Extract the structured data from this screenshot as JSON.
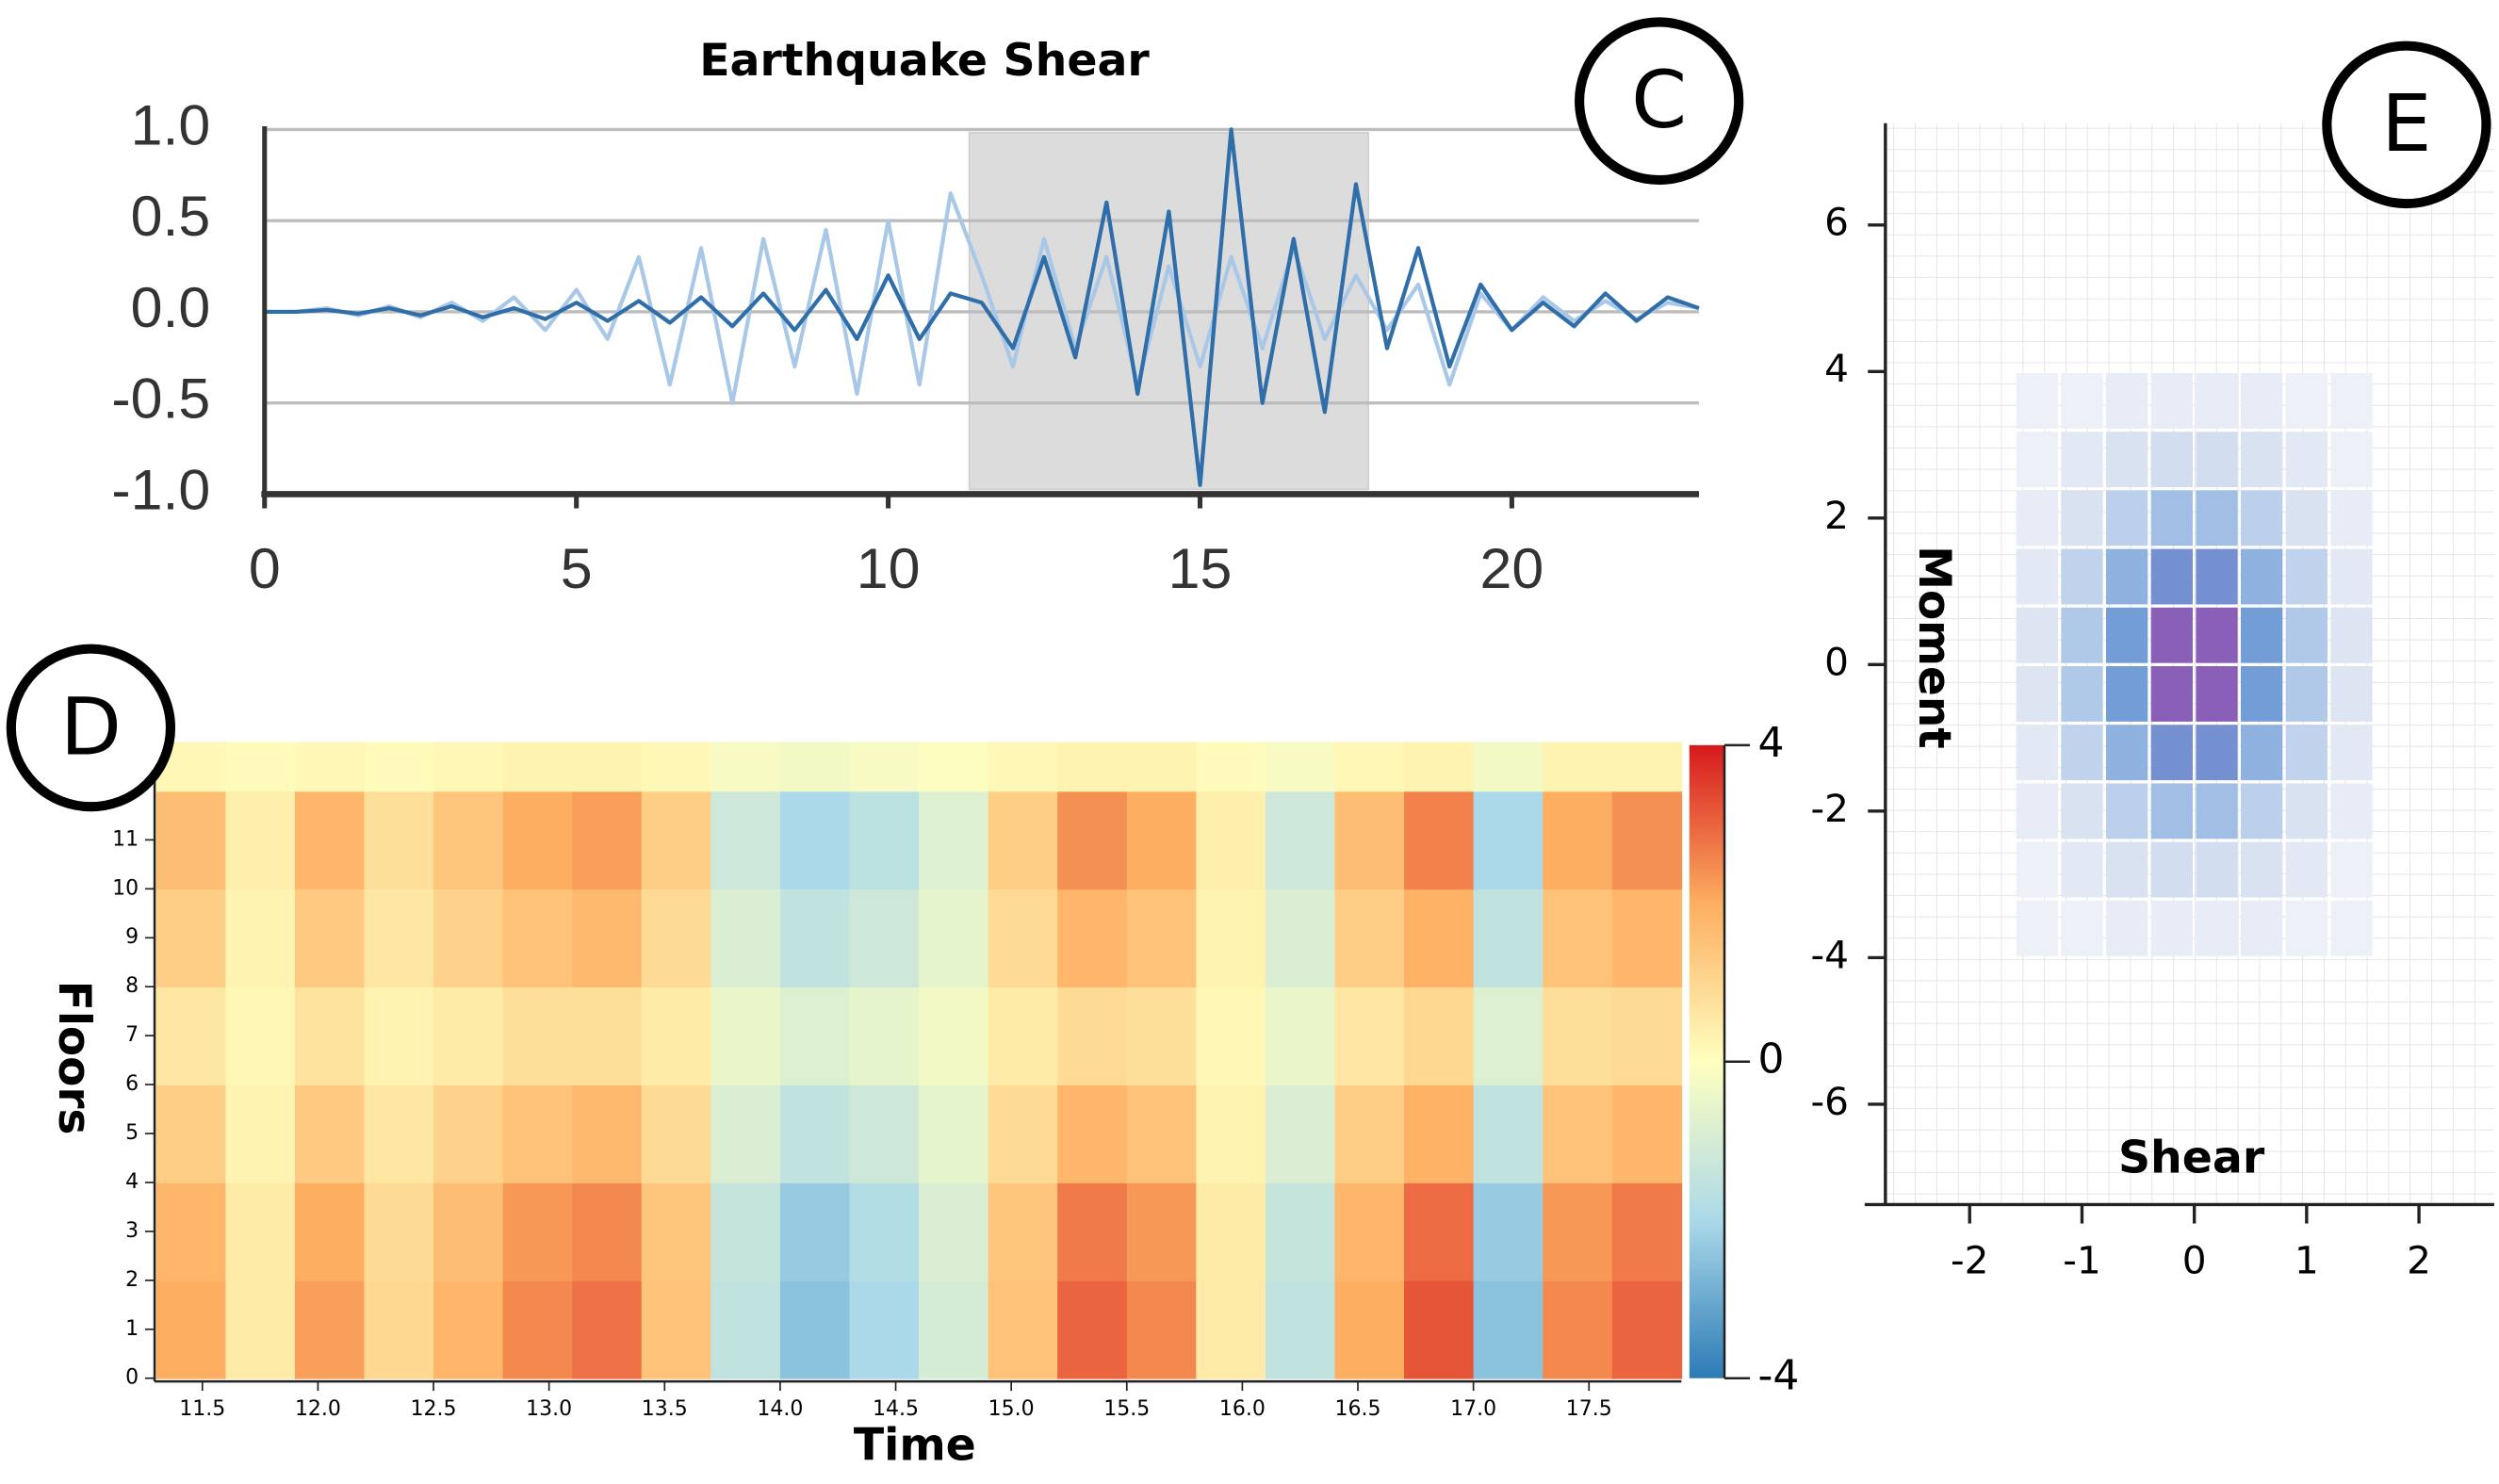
{
  "chart_data": [
    {
      "type": "line",
      "title": "Earthquake Shear",
      "panel_label": "C",
      "x": [
        0,
        0.5,
        1,
        1.5,
        2,
        2.5,
        3,
        3.5,
        4,
        4.5,
        5,
        5.5,
        6,
        6.5,
        7,
        7.5,
        8,
        8.5,
        9,
        9.5,
        10,
        10.5,
        11,
        11.5,
        12,
        12.5,
        13,
        13.5,
        14,
        14.5,
        15,
        15.5,
        16,
        16.5,
        17,
        17.5,
        18,
        18.5,
        19,
        19.5,
        20,
        20.5,
        21,
        21.5,
        22,
        22.5,
        23
      ],
      "series": [
        {
          "color": "#a9c8e8",
          "values": [
            0,
            0,
            0.02,
            -0.02,
            0.03,
            -0.03,
            0.05,
            -0.05,
            0.08,
            -0.1,
            0.12,
            -0.15,
            0.3,
            -0.4,
            0.35,
            -0.5,
            0.4,
            -0.3,
            0.45,
            -0.45,
            0.5,
            -0.4,
            0.65,
            0.2,
            -0.3,
            0.4,
            -0.2,
            0.3,
            -0.4,
            0.25,
            -0.3,
            0.3,
            -0.2,
            0.35,
            -0.15,
            0.2,
            -0.1,
            0.15,
            -0.4,
            0.1,
            -0.1,
            0.08,
            -0.05,
            0.06,
            -0.04,
            0.05,
            0.02
          ]
        },
        {
          "color": "#2f6ea8",
          "values": [
            0,
            0,
            0.01,
            -0.01,
            0.02,
            -0.02,
            0.03,
            -0.03,
            0.02,
            -0.04,
            0.05,
            -0.05,
            0.06,
            -0.06,
            0.08,
            -0.08,
            0.1,
            -0.1,
            0.12,
            -0.15,
            0.2,
            -0.15,
            0.1,
            0.05,
            -0.2,
            0.3,
            -0.25,
            0.6,
            -0.45,
            0.55,
            -0.95,
            1.0,
            -0.5,
            0.4,
            -0.55,
            0.7,
            -0.2,
            0.35,
            -0.3,
            0.15,
            -0.1,
            0.05,
            -0.08,
            0.1,
            -0.05,
            0.08,
            0.02
          ]
        }
      ],
      "xlim": [
        0,
        23
      ],
      "xticks": [
        0,
        5,
        10,
        15,
        20
      ],
      "ylim": [
        -1,
        1
      ],
      "yticks": [
        {
          "value": 1,
          "label": "1.0"
        },
        {
          "value": 0.5,
          "label": "0.5"
        },
        {
          "value": 0,
          "label": "0.0"
        },
        {
          "value": -0.5,
          "label": "-0.5"
        },
        {
          "value": -1,
          "label": "-1.0"
        }
      ],
      "grid": true,
      "selection": [
        11.3,
        17.7
      ]
    },
    {
      "type": "heatmap",
      "panel_label": "D",
      "x_label": "Time",
      "y_label": "Floors",
      "x_edges": [
        11.3,
        11.6,
        11.9,
        12.2,
        12.5,
        12.8,
        13.1,
        13.4,
        13.7,
        14.0,
        14.3,
        14.6,
        14.9,
        15.2,
        15.5,
        15.8,
        16.1,
        16.4,
        16.7,
        17.0,
        17.3,
        17.6,
        17.9
      ],
      "y_edges": [
        0,
        2,
        4,
        6,
        8,
        10,
        12,
        13
      ],
      "values": [
        [
          2.0,
          0.5,
          2.2,
          1.0,
          1.8,
          2.5,
          2.8,
          1.5,
          -1.5,
          -2.5,
          -2.0,
          -1.0,
          1.5,
          3.0,
          2.5,
          0.5,
          -1.5,
          2.0,
          3.2,
          -2.5,
          2.5,
          3.0
        ],
        [
          1.8,
          0.5,
          2.0,
          0.9,
          1.6,
          2.3,
          2.5,
          1.4,
          -1.4,
          -2.3,
          -1.8,
          -0.9,
          1.4,
          2.7,
          2.3,
          0.5,
          -1.4,
          1.8,
          2.9,
          -2.3,
          2.3,
          2.7
        ],
        [
          1.2,
          0.3,
          1.3,
          0.6,
          1.1,
          1.5,
          1.7,
          0.9,
          -0.9,
          -1.5,
          -1.2,
          -0.6,
          0.9,
          1.8,
          1.5,
          0.3,
          -0.9,
          1.2,
          1.9,
          -1.5,
          1.5,
          1.8
        ],
        [
          0.6,
          0.2,
          0.7,
          0.3,
          0.5,
          0.8,
          0.8,
          0.5,
          -0.5,
          -0.8,
          -0.6,
          -0.3,
          0.5,
          0.9,
          0.8,
          0.2,
          -0.5,
          0.6,
          1.0,
          -0.8,
          0.8,
          0.9
        ],
        [
          1.2,
          0.3,
          1.3,
          0.6,
          1.1,
          1.5,
          1.7,
          0.9,
          -0.9,
          -1.5,
          -1.2,
          -0.6,
          0.9,
          1.8,
          1.5,
          0.3,
          -0.9,
          1.2,
          1.9,
          -1.5,
          1.5,
          1.8
        ],
        [
          1.6,
          0.4,
          1.8,
          0.8,
          1.4,
          2.0,
          2.2,
          1.2,
          -1.2,
          -2.0,
          -1.6,
          -0.8,
          1.2,
          2.4,
          2.0,
          0.4,
          -1.2,
          1.6,
          2.6,
          -2.0,
          2.0,
          2.4
        ],
        [
          0.2,
          0.1,
          0.2,
          0.1,
          0.2,
          0.3,
          0.3,
          0.2,
          -0.2,
          -0.3,
          -0.2,
          -0.1,
          0.2,
          0.3,
          0.3,
          0.1,
          -0.2,
          0.2,
          0.3,
          -0.3,
          0.3,
          0.3
        ]
      ],
      "xlim": [
        11.3,
        17.9
      ],
      "xticks": [
        11.5,
        {
          "value": 12,
          "label": "12.0"
        },
        12.5,
        {
          "value": 13,
          "label": "13.0"
        },
        13.5,
        {
          "value": 14,
          "label": "14.0"
        },
        14.5,
        {
          "value": 15,
          "label": "15.0"
        },
        15.5,
        {
          "value": 16,
          "label": "16.0"
        },
        16.5,
        {
          "value": 17,
          "label": "17.0"
        },
        17.5
      ],
      "ylim": [
        0,
        13
      ],
      "yticks": [
        0,
        1,
        2,
        3,
        4,
        5,
        6,
        7,
        8,
        9,
        10,
        11
      ],
      "colorbar": {
        "lim": [
          -4,
          4
        ],
        "ticks": [
          4,
          0,
          -4
        ]
      },
      "colormap": [
        "#2c7bb6",
        "#abd9e9",
        "#ffffbf",
        "#fdae61",
        "#d7191c"
      ]
    },
    {
      "type": "histogram2d",
      "panel_label": "E",
      "x_label": "Shear",
      "y_label": "Moment",
      "x_edges": [
        -1.6,
        -1.2,
        -0.8,
        -0.4,
        0,
        0.4,
        0.8,
        1.2,
        1.6
      ],
      "y_edges": [
        -4,
        -3.2,
        -2.4,
        -1.6,
        -0.8,
        0,
        0.8,
        1.6,
        2.4,
        3.2,
        4
      ],
      "counts": [
        [
          0,
          0,
          1,
          1,
          1,
          1,
          0,
          0
        ],
        [
          0,
          2,
          4,
          5,
          5,
          4,
          2,
          0
        ],
        [
          1,
          4,
          9,
          14,
          14,
          9,
          4,
          1
        ],
        [
          2,
          8,
          18,
          27,
          27,
          18,
          8,
          2
        ],
        [
          3,
          11,
          24,
          37,
          37,
          24,
          11,
          3
        ],
        [
          3,
          11,
          24,
          37,
          37,
          24,
          11,
          3
        ],
        [
          2,
          8,
          18,
          27,
          27,
          18,
          8,
          2
        ],
        [
          1,
          4,
          9,
          14,
          14,
          9,
          4,
          1
        ],
        [
          0,
          2,
          4,
          5,
          5,
          4,
          2,
          0
        ],
        [
          0,
          0,
          1,
          1,
          1,
          1,
          0,
          0
        ]
      ],
      "xlim": [
        -2.75,
        2.67
      ],
      "xticks": [
        -2,
        -1,
        0,
        1,
        2
      ],
      "ylim": [
        -7.37,
        7.39
      ],
      "yticks": [
        -6,
        -4,
        -2,
        0,
        2,
        4,
        6
      ],
      "colors": [
        "#eef0f7",
        "#a9c4e6",
        "#6f9bd6",
        "#8a5fb8"
      ]
    }
  ]
}
